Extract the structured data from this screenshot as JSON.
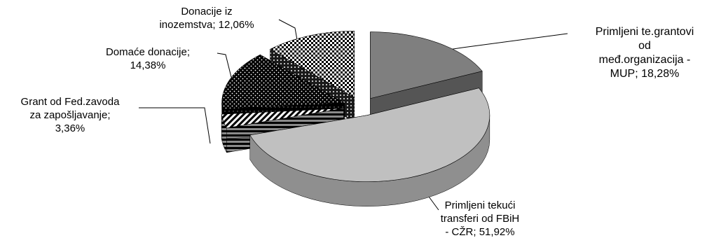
{
  "chart_data": {
    "type": "pie",
    "style": "3d exploded, grayscale with pattern fills",
    "legend": "none (data labels with leader lines)",
    "slices": [
      {
        "label_lines": [
          "Primljeni te.grantovi",
          "od",
          "međ.organizacija -",
          "MUP; 18,28%"
        ],
        "value": 18.28,
        "fill": "gray"
      },
      {
        "label_lines": [
          "Primljeni tekući",
          "transferi od FBiH",
          "- CŽR; 51,92%"
        ],
        "value": 51.92,
        "fill": "light-gray"
      },
      {
        "label_lines": [
          "Grant od Fed.zavoda",
          "za zapošljavanje;",
          "3,36%"
        ],
        "value": 3.36,
        "fill": "horizontal-stripes"
      },
      {
        "label_lines": [
          "Domaće donacije;",
          "14,38%"
        ],
        "value": 14.38,
        "fill": "dots-on-black"
      },
      {
        "label_lines": [
          "Donacije iz",
          "inozemstva; 12,06%"
        ],
        "value": 12.06,
        "fill": "checkerboard"
      }
    ]
  }
}
